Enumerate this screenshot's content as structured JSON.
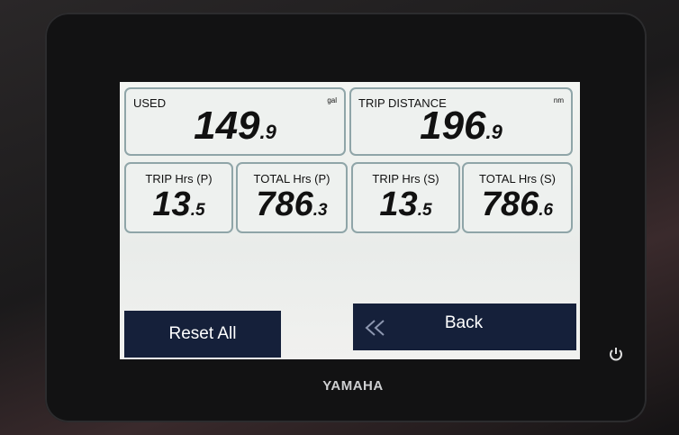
{
  "tiles": [
    {
      "label": "USED",
      "unit": "gal",
      "value": "149.9"
    },
    {
      "label": "TRIP DISTANCE",
      "unit": "nm",
      "value": "196.9"
    },
    {
      "label": "TRIP Hrs (P)",
      "value": "13.5"
    },
    {
      "label": "TOTAL Hrs (P)",
      "value": "786.3"
    },
    {
      "label": "TRIP Hrs (S)",
      "value": "13.5"
    },
    {
      "label": "TOTAL Hrs (S)",
      "value": "786.6"
    }
  ],
  "buttons": {
    "reset": "Reset All",
    "back": "Back"
  },
  "brand": "YAMAHA"
}
